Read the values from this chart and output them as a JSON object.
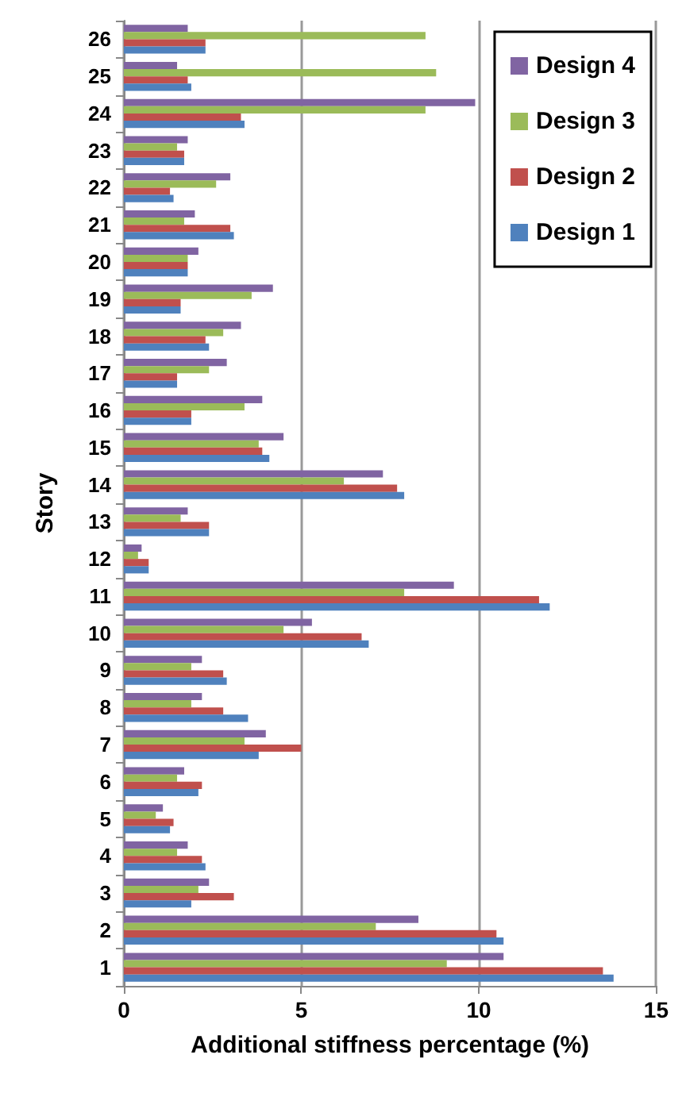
{
  "chart_data": {
    "type": "bar",
    "orientation": "horizontal",
    "xlabel": "Additional stiffness percentage (%)",
    "ylabel": "Story",
    "categories": [
      "26",
      "25",
      "24",
      "23",
      "22",
      "21",
      "20",
      "19",
      "18",
      "17",
      "16",
      "15",
      "14",
      "13",
      "12",
      "11",
      "10",
      "9",
      "8",
      "7",
      "6",
      "5",
      "4",
      "3",
      "2",
      "1"
    ],
    "series": [
      {
        "name": "Design 4",
        "color": "#8064a2",
        "values": [
          1.8,
          1.5,
          9.9,
          1.8,
          3.0,
          2.0,
          2.1,
          4.2,
          3.3,
          2.9,
          3.9,
          4.5,
          7.3,
          1.8,
          0.5,
          9.3,
          5.3,
          2.2,
          2.2,
          4.0,
          1.7,
          1.1,
          1.8,
          2.4,
          8.3,
          10.7
        ]
      },
      {
        "name": "Design 3",
        "color": "#9bbb59",
        "values": [
          8.5,
          8.8,
          8.5,
          1.5,
          2.6,
          1.7,
          1.8,
          3.6,
          2.8,
          2.4,
          3.4,
          3.8,
          6.2,
          1.6,
          0.4,
          7.9,
          4.5,
          1.9,
          1.9,
          3.4,
          1.5,
          0.9,
          1.5,
          2.1,
          7.1,
          9.1
        ]
      },
      {
        "name": "Design 2",
        "color": "#c0504d",
        "values": [
          2.3,
          1.8,
          3.3,
          1.7,
          1.3,
          3.0,
          1.8,
          1.6,
          2.3,
          1.5,
          1.9,
          3.9,
          7.7,
          2.4,
          0.7,
          11.7,
          6.7,
          2.8,
          2.8,
          5.0,
          2.2,
          1.4,
          2.2,
          3.1,
          10.5,
          13.5
        ]
      },
      {
        "name": "Design 1",
        "color": "#4f81bd",
        "values": [
          2.3,
          1.9,
          3.4,
          1.7,
          1.4,
          3.1,
          1.8,
          1.6,
          2.4,
          1.5,
          1.9,
          4.1,
          7.9,
          2.4,
          0.7,
          12.0,
          6.9,
          2.9,
          3.5,
          3.8,
          2.1,
          1.3,
          2.3,
          1.9,
          10.7,
          13.8
        ]
      }
    ],
    "xlim": [
      0,
      15
    ],
    "xticks": [
      0,
      5,
      10,
      15
    ],
    "grid": "x",
    "legend": "top right"
  }
}
